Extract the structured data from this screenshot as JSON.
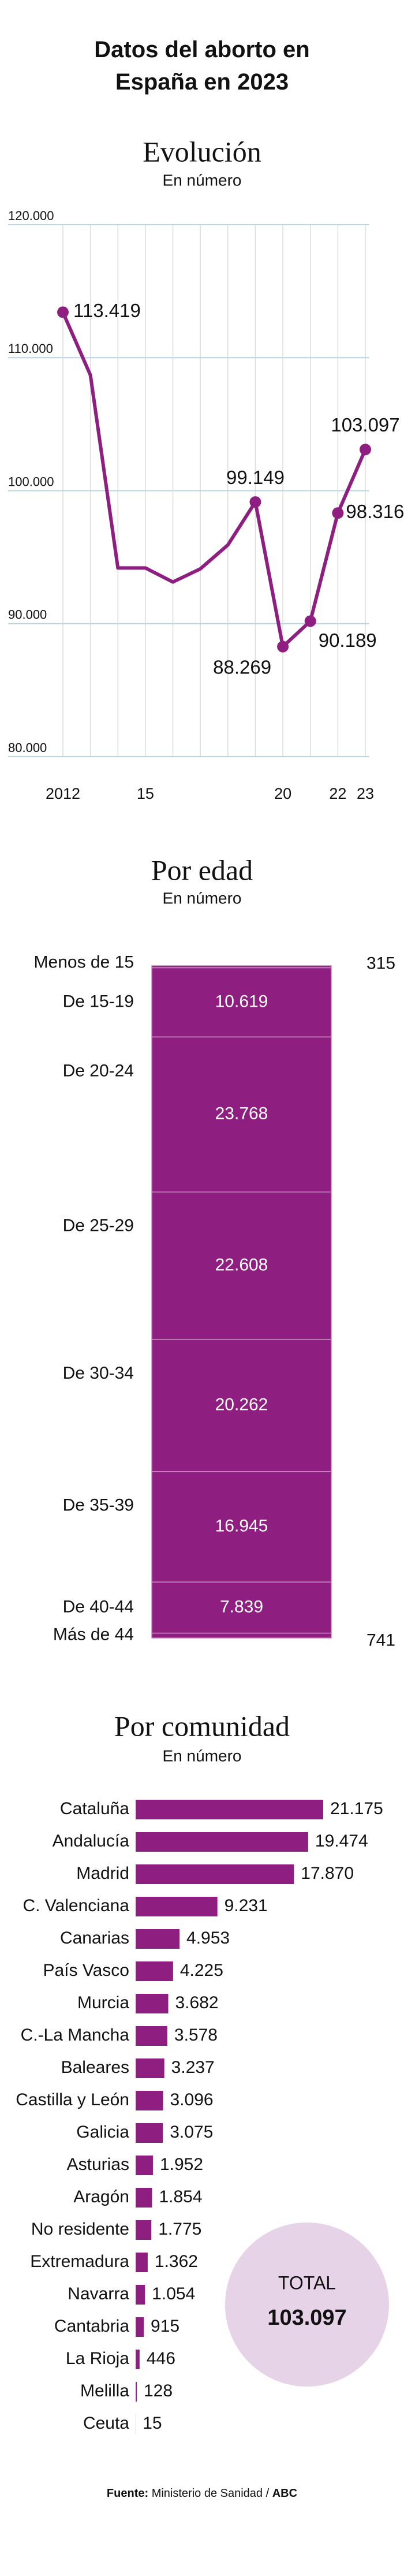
{
  "title": "Datos del aborto en España en 2023",
  "chart_data": [
    {
      "type": "line",
      "title": "Evolución",
      "subtitle": "En número",
      "color": "#8e1f80",
      "x": [
        2012,
        2013,
        2014,
        2015,
        2016,
        2017,
        2018,
        2019,
        2020,
        2021,
        2022,
        2023
      ],
      "values": [
        113419,
        108690,
        94188,
        94188,
        93131,
        94123,
        95917,
        99149,
        88269,
        90189,
        98316,
        103097
      ],
      "value_labels": [
        "113.419",
        null,
        null,
        null,
        null,
        null,
        null,
        "99.149",
        "88.269",
        "90.189",
        "98.316",
        "103.097"
      ],
      "xlim": [
        2012,
        2023
      ],
      "xticks": [
        2012,
        {
          "value": 2015,
          "label": "15"
        },
        {
          "value": 2020,
          "label": "20"
        },
        {
          "value": 2022,
          "label": "22"
        },
        {
          "value": 2023,
          "label": "23"
        }
      ],
      "ylim": [
        80000,
        120000
      ],
      "yticks": [
        {
          "value": 80000,
          "label": "80.000"
        },
        {
          "value": 90000,
          "label": "90.000"
        },
        {
          "value": 100000,
          "label": "100.000"
        },
        {
          "value": 110000,
          "label": "110.000"
        },
        {
          "value": 120000,
          "label": "120.000"
        }
      ],
      "grid": true
    },
    {
      "type": "stack",
      "title": "Por edad",
      "subtitle": "En número",
      "color": "#8e1f80",
      "categories": [
        "Menos de 15",
        "De 15-19",
        "De 20-24",
        "De 25-29",
        "De 30-34",
        "De 35-39",
        "De 40-44",
        "Más de 44"
      ],
      "values": [
        315,
        10619,
        23768,
        22608,
        20262,
        16945,
        7839,
        741
      ],
      "value_labels": [
        "315",
        "10.619",
        "23.768",
        "22.608",
        "20.262",
        "16.945",
        "7.839",
        "741"
      ]
    },
    {
      "type": "bar",
      "title": "Por comunidad",
      "subtitle": "En número",
      "color": "#8e1f80",
      "categories": [
        "Cataluña",
        "Andalucía",
        "Madrid",
        "C. Valenciana",
        "Canarias",
        "País Vasco",
        "Murcia",
        "C.-La Mancha",
        "Baleares",
        "Castilla y León",
        "Galicia",
        "Asturias",
        "Aragón",
        "No residente",
        "Extremadura",
        "Navarra",
        "Cantabria",
        "La Rioja",
        "Melilla",
        "Ceuta"
      ],
      "values": [
        21175,
        19474,
        17870,
        9231,
        4953,
        4225,
        3682,
        3578,
        3237,
        3096,
        3075,
        1952,
        1854,
        1775,
        1362,
        1054,
        915,
        446,
        128,
        15
      ],
      "value_labels": [
        "21.175",
        "19.474",
        "17.870",
        "9.231",
        "4.953",
        "4.225",
        "3.682",
        "3.578",
        "3.237",
        "3.096",
        "3.075",
        "1.952",
        "1.854",
        "1.775",
        "1.362",
        "1.054",
        "915",
        "446",
        "128",
        "15"
      ],
      "total": {
        "label": "TOTAL",
        "value": 103097,
        "value_label": "103.097"
      }
    }
  ],
  "source": {
    "prefix": "Fuente:",
    "text": "Ministerio de Sanidad /",
    "brand": "ABC"
  }
}
